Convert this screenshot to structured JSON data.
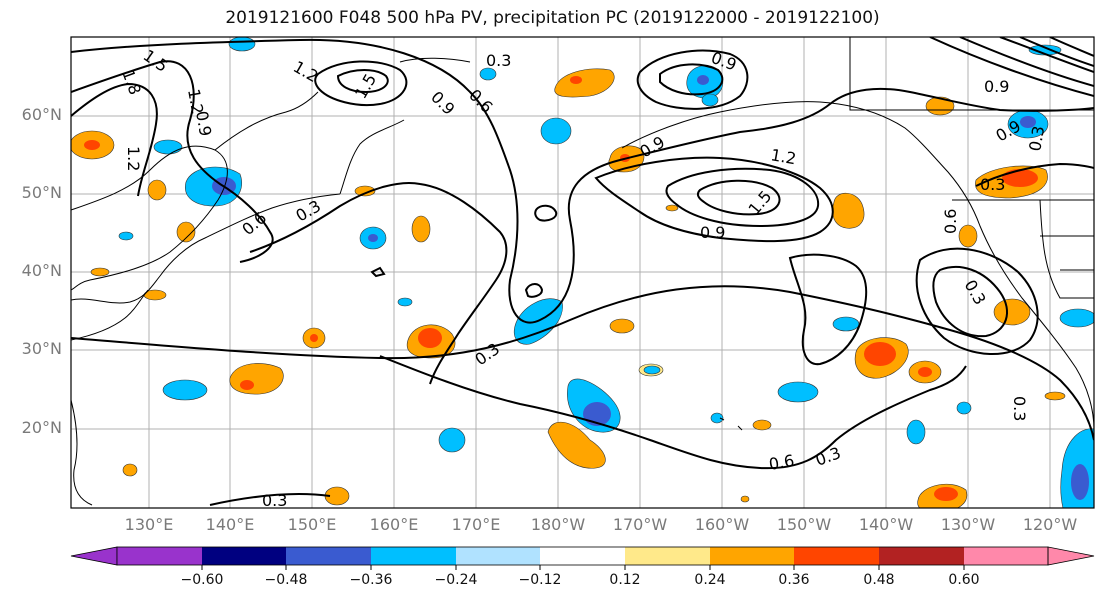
{
  "title": "2019121600 F048 500 hPa PV, precipitation PC (2019122000 - 2019122100)",
  "lat_labels": [
    "60°N",
    "50°N",
    "40°N",
    "30°N",
    "20°N"
  ],
  "lon_labels": [
    "130°E",
    "140°E",
    "150°E",
    "160°E",
    "170°E",
    "180°W",
    "170°W",
    "160°W",
    "150°W",
    "140°W",
    "130°W",
    "120°W"
  ],
  "contour_labels": [
    "1.5",
    "1.8",
    "1.2",
    "1.2",
    "1.2",
    "1.5",
    "0.3",
    "0.9",
    "0.9",
    "0.6",
    "0.9",
    "0.9",
    "1.2",
    "1.5",
    "0.9",
    "0.6",
    "0.3",
    "0.3",
    "0.3",
    "0.6",
    "0.3",
    "0.9",
    "0.3",
    "0.9",
    "0.3",
    "0.6",
    "0.3",
    "0.3"
  ],
  "colorbar": {
    "tick_labels": [
      "−0.60",
      "−0.48",
      "−0.36",
      "−0.24",
      "−0.12",
      "0.12",
      "0.24",
      "0.36",
      "0.48",
      "0.60"
    ],
    "colors": [
      "#9933cc",
      "#000080",
      "#3a5bd0",
      "#00bfff",
      "#b0e2ff",
      "#ffffff",
      "#ffe98a",
      "#ffa500",
      "#ff4500",
      "#b22222",
      "#ff88aa"
    ]
  }
}
